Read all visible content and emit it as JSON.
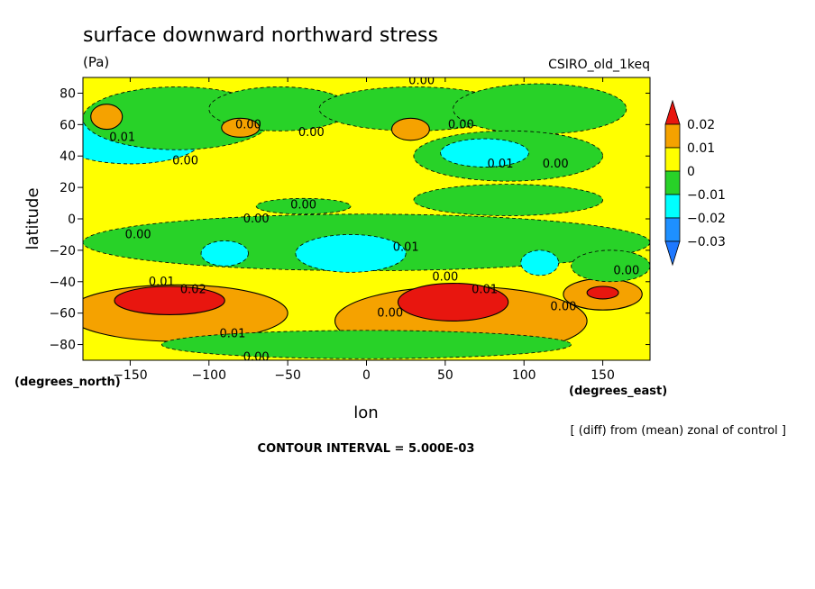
{
  "chart_data": {
    "type": "heatmap",
    "title": "surface downward northward stress",
    "units": "(Pa)",
    "model": "CSIRO_old_1keq",
    "xlabel": "lon",
    "ylabel": "latitude",
    "x_unit": "(degrees_east)",
    "y_unit": "(degrees_north)",
    "xlim": [
      -180,
      180
    ],
    "ylim": [
      -90,
      90
    ],
    "x_ticks": [
      -150,
      -100,
      -50,
      0,
      50,
      100,
      150
    ],
    "y_ticks": [
      80,
      60,
      40,
      20,
      0,
      -20,
      -40,
      -60,
      -80
    ],
    "x_tick_labels": [
      "−150",
      "−100",
      "−50",
      "0",
      "50",
      "100",
      "150"
    ],
    "y_tick_labels": [
      "80",
      "60",
      "40",
      "20",
      "0",
      "−20",
      "−40",
      "−60",
      "−80"
    ],
    "note": "[ (diff) from (mean) zonal of control ]",
    "contour_interval": "CONTOUR INTERVAL = 5.000E-03",
    "colorbar": {
      "labels": [
        "0.02",
        "0.01",
        "0",
        "−0.01",
        "−0.02",
        "−0.03"
      ],
      "bins": [
        {
          "min": 0.02,
          "max": null,
          "color": "#e8160f"
        },
        {
          "min": 0.01,
          "max": 0.02,
          "color": "#f5a200"
        },
        {
          "min": 0.0,
          "max": 0.01,
          "color": "#ffff00"
        },
        {
          "min": -0.01,
          "max": 0.0,
          "color": "#28d228"
        },
        {
          "min": -0.02,
          "max": -0.01,
          "color": "#00ffff"
        },
        {
          "min": -0.03,
          "max": -0.02,
          "color": "#1e90ff"
        },
        {
          "min": null,
          "max": -0.03,
          "color": "#1e78ff"
        }
      ]
    },
    "background_value": 0.005,
    "regions": [
      {
        "lon": -145,
        "lat": 48,
        "rlon": 20,
        "rlat": 7,
        "value": -0.025
      },
      {
        "lon": -150,
        "lat": 50,
        "rlon": 45,
        "rlat": 15,
        "value": -0.012
      },
      {
        "lon": -120,
        "lat": 64,
        "rlon": 60,
        "rlat": 20,
        "value": -0.006
      },
      {
        "lon": -55,
        "lat": 70,
        "rlon": 45,
        "rlat": 14,
        "value": -0.006
      },
      {
        "lon": 30,
        "lat": 70,
        "rlon": 60,
        "rlat": 14,
        "value": -0.006
      },
      {
        "lon": 110,
        "lat": 70,
        "rlon": 55,
        "rlat": 16,
        "value": -0.006
      },
      {
        "lon": 90,
        "lat": 40,
        "rlon": 60,
        "rlat": 16,
        "value": -0.006
      },
      {
        "lon": 75,
        "lat": 42,
        "rlon": 28,
        "rlat": 9,
        "value": -0.015
      },
      {
        "lon": -80,
        "lat": 58,
        "rlon": 12,
        "rlat": 6,
        "value": 0.013
      },
      {
        "lon": 28,
        "lat": 57,
        "rlon": 12,
        "rlat": 7,
        "value": 0.013
      },
      {
        "lon": -165,
        "lat": 65,
        "rlon": 10,
        "rlat": 8,
        "value": 0.012
      },
      {
        "lon": -40,
        "lat": 8,
        "rlon": 30,
        "rlat": 5,
        "value": -0.006
      },
      {
        "lon": 90,
        "lat": 12,
        "rlon": 60,
        "rlat": 10,
        "value": -0.006
      },
      {
        "lon": 0,
        "lat": -15,
        "rlon": 180,
        "rlat": 18,
        "value": -0.006
      },
      {
        "lon": -90,
        "lat": -22,
        "rlon": 15,
        "rlat": 8,
        "value": -0.015
      },
      {
        "lon": -10,
        "lat": -22,
        "rlon": 35,
        "rlat": 12,
        "value": -0.015
      },
      {
        "lon": 110,
        "lat": -28,
        "rlon": 12,
        "rlat": 8,
        "value": -0.015
      },
      {
        "lon": -120,
        "lat": -60,
        "rlon": 70,
        "rlat": 18,
        "value": 0.013
      },
      {
        "lon": -125,
        "lat": -52,
        "rlon": 35,
        "rlat": 9,
        "value": 0.024
      },
      {
        "lon": 60,
        "lat": -65,
        "rlon": 80,
        "rlat": 22,
        "value": 0.013
      },
      {
        "lon": 55,
        "lat": -53,
        "rlon": 35,
        "rlat": 12,
        "value": 0.024
      },
      {
        "lon": 150,
        "lat": -48,
        "rlon": 25,
        "rlat": 10,
        "value": 0.012
      },
      {
        "lon": 150,
        "lat": -47,
        "rlon": 10,
        "rlat": 4,
        "value": 0.024
      },
      {
        "lon": 0,
        "lat": -80,
        "rlon": 130,
        "rlat": 9,
        "value": -0.005
      },
      {
        "lon": 155,
        "lat": -30,
        "rlon": 25,
        "rlat": 10,
        "value": -0.006
      }
    ],
    "contour_labels": [
      {
        "lon": 35,
        "lat": 88,
        "text": "0.00"
      },
      {
        "lon": -75,
        "lat": 60,
        "text": "0.00"
      },
      {
        "lon": -35,
        "lat": 55,
        "text": "0.00"
      },
      {
        "lon": 60,
        "lat": 60,
        "text": "0.00"
      },
      {
        "lon": -155,
        "lat": 52,
        "text": "0.01"
      },
      {
        "lon": -115,
        "lat": 37,
        "text": "0.00"
      },
      {
        "lon": 85,
        "lat": 35,
        "text": "0.01"
      },
      {
        "lon": 120,
        "lat": 35,
        "text": "0.00"
      },
      {
        "lon": -40,
        "lat": 9,
        "text": "0.00"
      },
      {
        "lon": -70,
        "lat": 0,
        "text": "0.00"
      },
      {
        "lon": -145,
        "lat": -10,
        "text": "0.00"
      },
      {
        "lon": 25,
        "lat": -18,
        "text": "0.01"
      },
      {
        "lon": 50,
        "lat": -37,
        "text": "0.00"
      },
      {
        "lon": 75,
        "lat": -45,
        "text": "0.01"
      },
      {
        "lon": 165,
        "lat": -33,
        "text": "0.00"
      },
      {
        "lon": -130,
        "lat": -40,
        "text": "0.01"
      },
      {
        "lon": -110,
        "lat": -45,
        "text": "0.02"
      },
      {
        "lon": -85,
        "lat": -73,
        "text": "0.01"
      },
      {
        "lon": 15,
        "lat": -60,
        "text": "0.00"
      },
      {
        "lon": 125,
        "lat": -56,
        "text": "0.00"
      },
      {
        "lon": -70,
        "lat": -88,
        "text": "0.00"
      }
    ]
  }
}
